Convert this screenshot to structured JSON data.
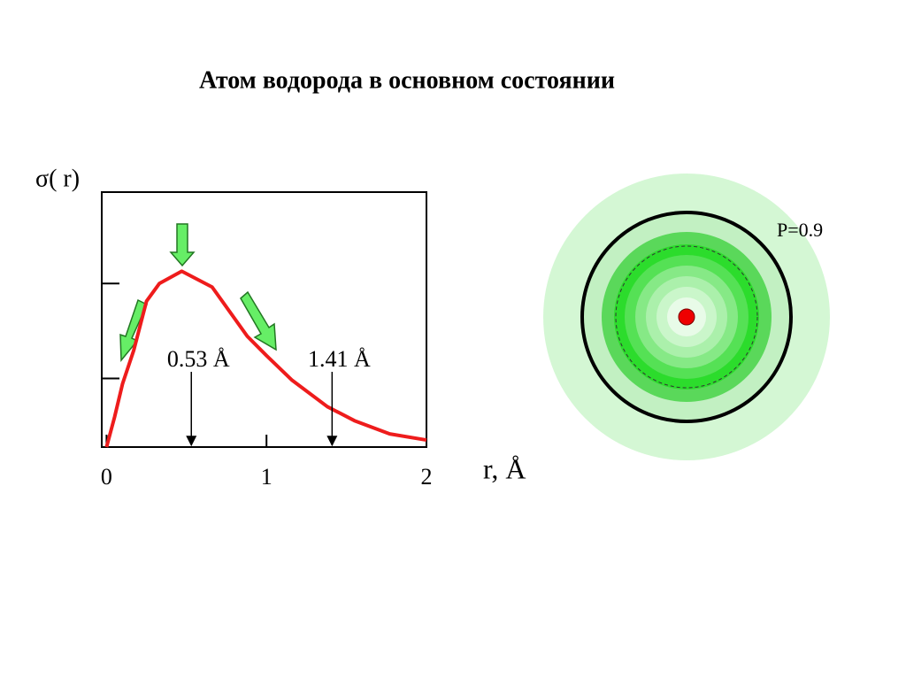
{
  "chart_data": {
    "type": "line",
    "title": "Атом водорода в основном состоянии",
    "y_label": "σ( r)",
    "x_label": "r, Å",
    "x": [
      0,
      0.05,
      0.1,
      0.17,
      0.25,
      0.33,
      0.47,
      0.66,
      0.88,
      1.0,
      1.16,
      1.38,
      1.55,
      1.77,
      2.0
    ],
    "values": [
      0,
      0.17,
      0.36,
      0.55,
      0.83,
      0.93,
      1.0,
      0.91,
      0.63,
      0.52,
      0.38,
      0.23,
      0.15,
      0.075,
      0.04
    ],
    "color": "#ee1c1c",
    "xlim": [
      -0.03,
      2
    ],
    "xticks": [
      0,
      1,
      2
    ],
    "ylim": [
      0,
      1.45
    ],
    "yticks": [
      0.39,
      0.93
    ],
    "annotations": [
      {
        "text": "0.53 Å",
        "x": 0.53
      },
      {
        "text": "1.41 Å",
        "x": 1.41
      }
    ]
  },
  "diagram": {
    "label": "P=0.9"
  }
}
